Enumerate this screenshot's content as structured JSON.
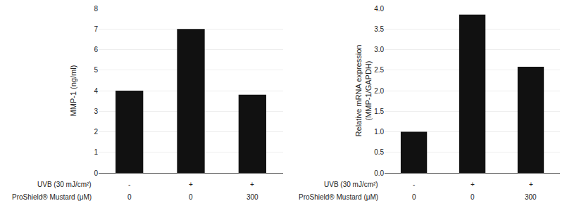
{
  "chart_data": [
    {
      "type": "bar",
      "categories": [
        null,
        null,
        null
      ],
      "values": [
        4.0,
        7.0,
        3.8
      ],
      "ylabel": "MMP-1 (ng/ml)",
      "ylim": [
        0,
        8
      ],
      "yticks": [
        0,
        1,
        2,
        3,
        4,
        5,
        6,
        7,
        8
      ],
      "color": "#111111",
      "grid": true,
      "annotations": [
        {
          "text": "UVB (30 mJ/cm²)",
          "labels": [
            "-",
            "+",
            "+"
          ]
        },
        {
          "text": "ProShield® Mustard (μM)",
          "labels": [
            "0",
            "0",
            "300"
          ]
        }
      ]
    },
    {
      "type": "bar",
      "categories": [
        null,
        null,
        null
      ],
      "values": [
        1.0,
        3.85,
        2.58
      ],
      "ylabel": "Relative mRNA expression\n(MMP-1/GAPDH)",
      "ylim": [
        0,
        4
      ],
      "yticks": [
        {
          "value": 0,
          "label": "0.0"
        },
        0.5,
        {
          "value": 1,
          "label": "1.0"
        },
        1.5,
        {
          "value": 2,
          "label": "2.0"
        },
        2.5,
        {
          "value": 3,
          "label": "3.0"
        },
        3.5,
        {
          "value": 4,
          "label": "4.0"
        }
      ],
      "color": "#111111",
      "grid": true,
      "annotations": [
        {
          "text": "UVB (30 mJ/cm²)",
          "labels": [
            "-",
            "+",
            "+"
          ]
        },
        {
          "text": "ProShield® Mustard (μM)",
          "labels": [
            "0",
            "0",
            "300"
          ]
        }
      ]
    }
  ]
}
